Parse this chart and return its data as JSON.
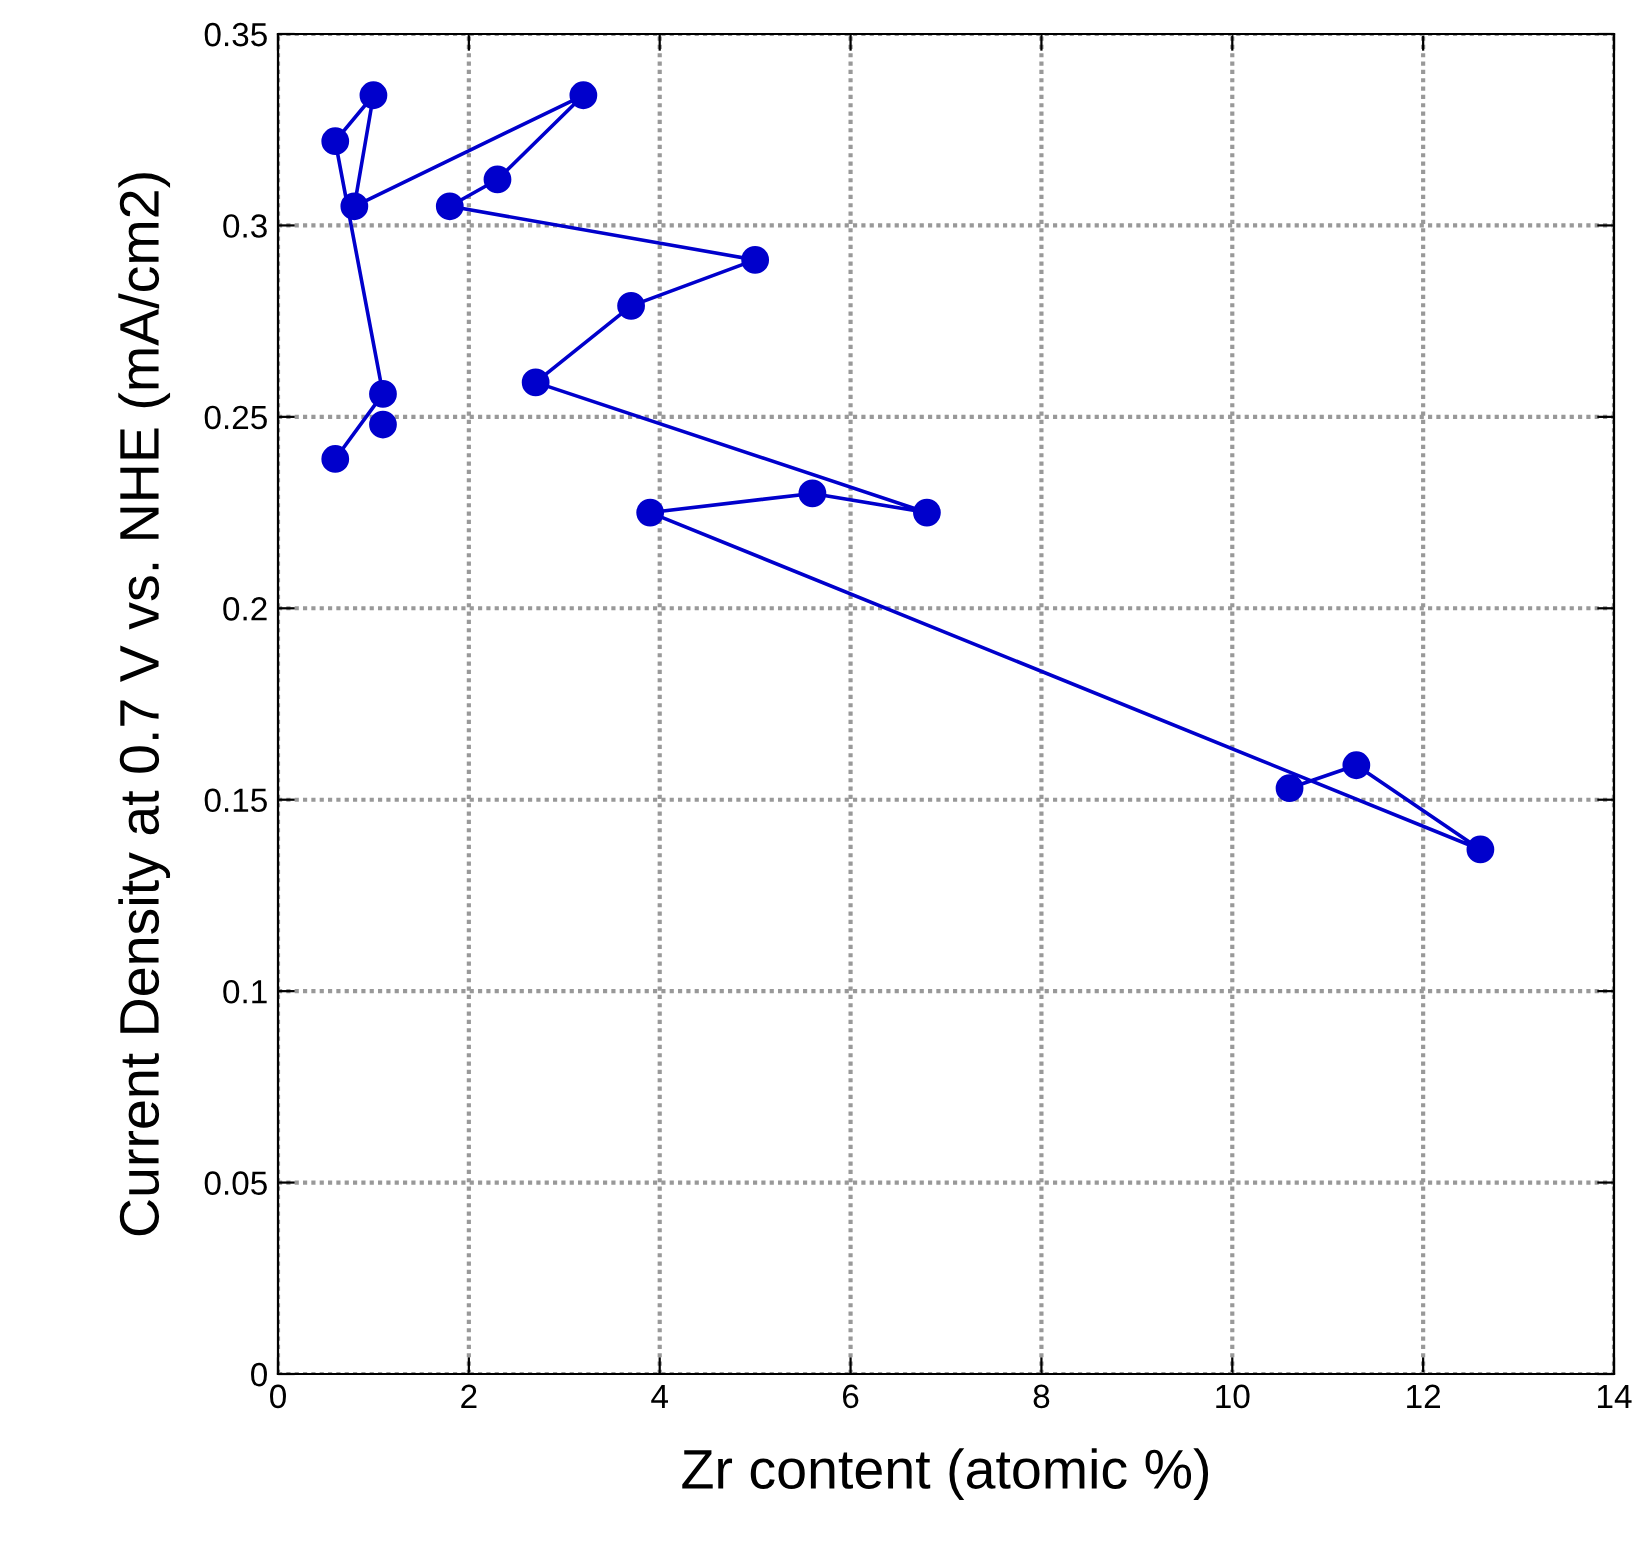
{
  "chart_data": {
    "type": "line",
    "xlabel": "Zr content (atomic %)",
    "ylabel": "Current Density at 0.7 V vs. NHE (mA/cm2)",
    "x": [
      0.6,
      1.1,
      0.6,
      1.0,
      0.8,
      3.2,
      2.3,
      1.8,
      5.0,
      3.7,
      2.7,
      6.8,
      5.6,
      3.9,
      12.6,
      11.3,
      10.6,
      null,
      1.1
    ],
    "series": [
      {
        "color": "#0000cc",
        "values": [
          0.239,
          0.256,
          0.322,
          0.334,
          0.305,
          0.334,
          0.312,
          0.305,
          0.291,
          0.279,
          0.259,
          0.225,
          0.23,
          0.225,
          0.137,
          0.159,
          0.153,
          null,
          0.248
        ]
      }
    ],
    "xlim": [
      0,
      14
    ],
    "xticks": [
      0,
      2,
      4,
      6,
      8,
      10,
      12,
      14
    ],
    "ylim": [
      0,
      0.35
    ],
    "yticks": [
      {
        "value": 0,
        "label": "0"
      },
      {
        "value": 0.05,
        "label": "0.05"
      },
      {
        "value": 0.1,
        "label": "0.1"
      },
      {
        "value": 0.15,
        "label": "0.15"
      },
      {
        "value": 0.2,
        "label": "0.2"
      },
      {
        "value": 0.25,
        "label": "0.25"
      },
      {
        "value": 0.3,
        "label": "0.3"
      },
      {
        "value": 0.35,
        "label": "0.35"
      }
    ],
    "grid": true,
    "marker": "circle",
    "line_style": "solid"
  }
}
